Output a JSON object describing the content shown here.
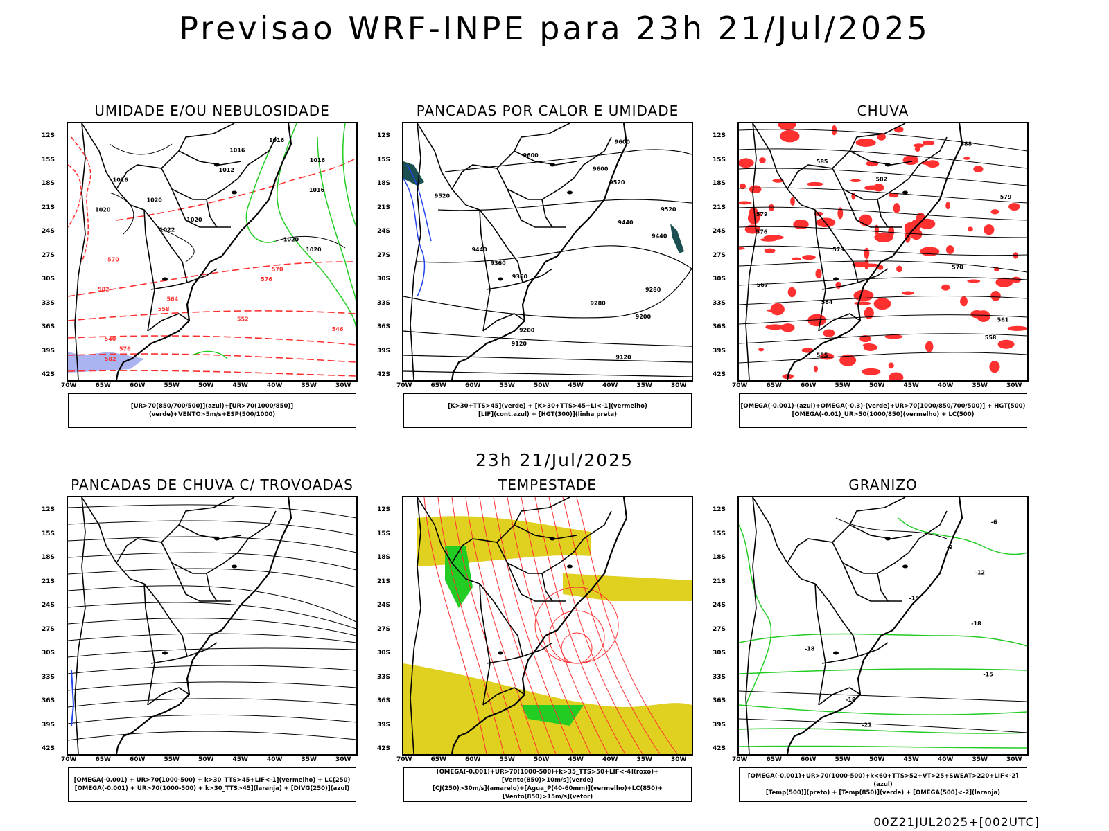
{
  "title": "Previsao WRF-INPE  para 23h 21/Jul/2025",
  "subtitle": "23h 21/Jul/2025",
  "footer": "00Z21JUL2025+[002UTC]",
  "lat_labels": [
    "12S",
    "15S",
    "18S",
    "21S",
    "24S",
    "27S",
    "30S",
    "33S",
    "36S",
    "39S",
    "42S"
  ],
  "lon_labels": [
    "70W",
    "65W",
    "60W",
    "55W",
    "50W",
    "45W",
    "40W",
    "35W",
    "30W"
  ],
  "colors": {
    "red": "#ff3030",
    "green": "#22cc22",
    "blue": "#2244ee",
    "yellow": "#e0d020",
    "lavender": "#aab4f0",
    "orange": "#ff8800"
  },
  "panels": [
    {
      "title": "UMIDADE E/OU NEBULOSIDADE",
      "legend": [
        "[UR>70(850/700/500)](azul)+[UR>70(1000/850)](verde)+VENTO>5m/s+ESP(500/1000)"
      ],
      "contours": [
        "1016",
        "1016",
        "1016",
        "1012",
        "1016",
        "1016",
        "1020",
        "1020",
        "1020",
        "1022",
        "1020",
        "1020",
        "570",
        "570",
        "576",
        "582",
        "564",
        "558",
        "552",
        "546",
        "540",
        "576",
        "582"
      ]
    },
    {
      "title": "PANCADAS POR CALOR E UMIDADE",
      "legend": [
        "[K>30+TTS>45](verde) + [K>30+TTS>45+LI<-1](vermelho)",
        "[LIF](cont.azul) + [HGT(300)](linha preta)"
      ],
      "contours": [
        "9600",
        "9600",
        "9600",
        "9520",
        "9520",
        "9520",
        "9440",
        "9440",
        "9440",
        "9360",
        "9360",
        "9280",
        "9280",
        "9200",
        "9200",
        "9120",
        "9120"
      ]
    },
    {
      "title": "CHUVA",
      "legend": [
        "[OMEGA(-0.001)-(azul)+OMEGA(-0.3)-(verde)+UR>70(1000/850/700/500)] + HGT(500)",
        "[OMEGA(-0.01)_UR>50(1000/850)(vermelho) + LC(500)"
      ],
      "contours": [
        "588",
        "585",
        "582",
        "579",
        "579",
        "576",
        "573",
        "570",
        "567",
        "564",
        "561",
        "558",
        "555"
      ]
    },
    {
      "title": "PANCADAS DE CHUVA C/ TROVOADAS",
      "legend": [
        "[OMEGA(-0.001) + UR>70(1000-500) + k>30_TTS>45+LIF<-1](vermelho) + LC(250)",
        "[OMEGA(-0.001) + UR>70(1000-500) + k>30_TTS>45](laranja) + [DIVG(250)](azul)"
      ],
      "contours": []
    },
    {
      "title": "TEMPESTADE",
      "legend": [
        "[OMEGA(-0.001)+UR>70(1000-500)+k>35_TTS>50+LIF<-4](roxo)+[Vento(850)>10m/s](verde)",
        "[CJ(250)>30m/s](amarelo)+[Agua_P(40-60mm)](vermelho)+LC(850)+[Vento(850)>15m/s](vetor)"
      ],
      "contours": []
    },
    {
      "title": "GRANIZO",
      "legend": [
        "[OMEGA(-0.001)+UR>70(1000-500)+k<60+TTS>52+VT>25+SWEAT>220+LIF<-2](azul)",
        "[Temp(500)](preto) + [Temp(850)](verde) + [OMEGA(500)<-2](laranja)"
      ],
      "contours": [
        "-6",
        "-9",
        "-12",
        "-15",
        "-18",
        "-18",
        "-15",
        "-18",
        "-21"
      ]
    }
  ]
}
